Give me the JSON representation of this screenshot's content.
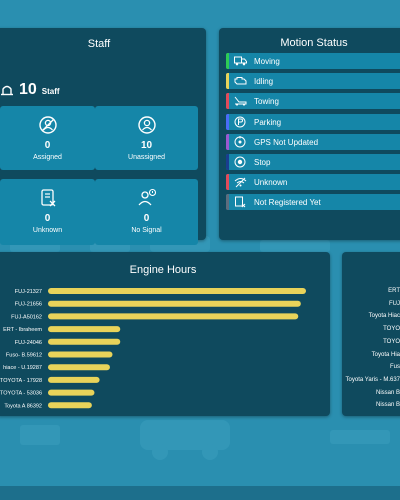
{
  "colors": {
    "page_bg": "#2a8fb0",
    "panel_bg": "#0f4a5e",
    "card_bg": "#1586a8",
    "bar_yellow": "#e8d35a"
  },
  "staff": {
    "title": "Staff",
    "total": "10",
    "total_label": "Staff",
    "cards": [
      {
        "value": "0",
        "label": "Assigned",
        "icon": "assigned-person-icon"
      },
      {
        "value": "10",
        "label": "Unassigned",
        "icon": "unassigned-person-icon"
      },
      {
        "value": "0",
        "label": "Unknown",
        "icon": "unknown-document-icon"
      },
      {
        "value": "0",
        "label": "No Signal",
        "icon": "no-signal-person-icon"
      }
    ]
  },
  "motion": {
    "title": "Motion Status",
    "items": [
      {
        "label": "Moving",
        "color": "#2ecc55",
        "icon": "truck-icon"
      },
      {
        "label": "Idling",
        "color": "#e8d35a",
        "icon": "engine-icon"
      },
      {
        "label": "Towing",
        "color": "#e14b5a",
        "icon": "tow-truck-icon"
      },
      {
        "label": "Parking",
        "color": "#4a6cf7",
        "icon": "parking-icon"
      },
      {
        "label": "GPS Not Updated",
        "color": "#9b59d0",
        "icon": "gps-icon"
      },
      {
        "label": "Stop",
        "color": "#1a3d8f",
        "icon": "stop-icon"
      },
      {
        "label": "Unknown",
        "color": "#e14b5a",
        "icon": "wifi-off-icon"
      },
      {
        "label": "Not Registered Yet",
        "color": "#5d6d7e",
        "icon": "not-registered-icon"
      }
    ]
  },
  "engine_hours": {
    "title": "Engine Hours",
    "chart_data": {
      "type": "bar",
      "orientation": "horizontal",
      "categories": [
        "FUJ-21327",
        "FUJ-21656",
        "FUJ-A50162",
        "ERT - Ibraheem",
        "FUJ-24046",
        "Fuso- B.59612",
        "hiace - U.19287",
        "TOYOTA - 17928",
        "TOYOTA - 53036",
        "Toyota A 86392"
      ],
      "values": [
        100,
        98,
        97,
        28,
        28,
        25,
        24,
        20,
        18,
        17
      ],
      "xlim": [
        0,
        100
      ],
      "grid": false,
      "legend": "none"
    }
  },
  "right_panel": {
    "labels": [
      "ERT",
      "FUJ",
      "Toyota Hiac",
      "TOYO",
      "TOYO",
      "Toyota Hia",
      "Fus",
      "Toyota Yaris - M.637",
      "Nissan B",
      "Nissan B"
    ]
  }
}
